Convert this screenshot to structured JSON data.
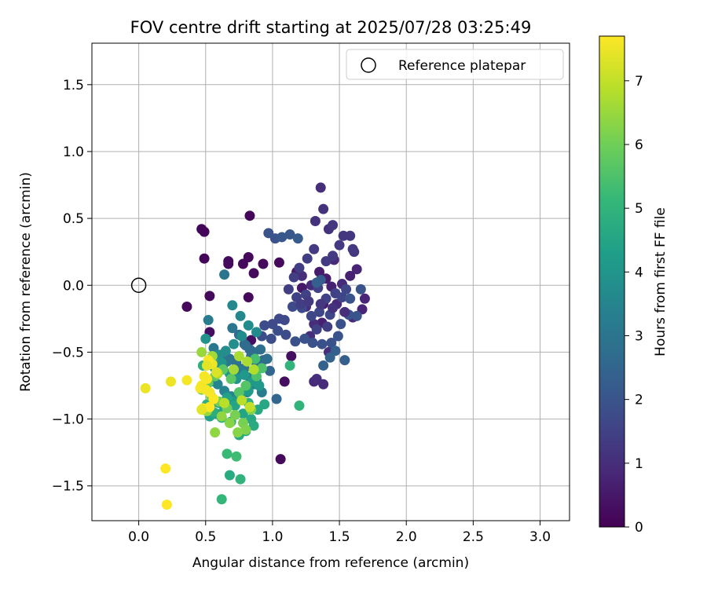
{
  "chart_data": {
    "type": "scatter",
    "title": "FOV centre drift starting at 2025/07/28 03:25:49",
    "xlabel": "Angular distance from reference (arcmin)",
    "ylabel": "Rotation from reference (arcmin)",
    "xlim": [
      -0.35,
      3.22
    ],
    "ylim": [
      -1.76,
      1.81
    ],
    "xticks": [
      0.0,
      0.5,
      1.0,
      1.5,
      2.0,
      2.5,
      3.0
    ],
    "xtick_labels": [
      "0.0",
      "0.5",
      "1.0",
      "1.5",
      "2.0",
      "2.5",
      "3.0"
    ],
    "yticks": [
      -1.5,
      -1.0,
      -0.5,
      0.0,
      0.5,
      1.0,
      1.5
    ],
    "ytick_labels": [
      "−1.5",
      "−1.0",
      "−0.5",
      "0.0",
      "0.5",
      "1.0",
      "1.5"
    ],
    "grid": true,
    "legend": {
      "placement": "top-right",
      "entries": [
        "Reference platepar"
      ]
    },
    "reference_point": {
      "x": 0.0,
      "y": 0.0
    },
    "colorbar": {
      "label": "Hours from first FF file",
      "colormap": "viridis",
      "range": [
        0,
        7.7
      ],
      "ticks": [
        0,
        1,
        2,
        3,
        4,
        5,
        6,
        7
      ],
      "tick_labels": [
        "0",
        "1",
        "2",
        "3",
        "4",
        "5",
        "6",
        "7"
      ]
    },
    "colormap_stops": [
      "#440154",
      "#482878",
      "#3e4a89",
      "#31688e",
      "#26828e",
      "#1f9e89",
      "#35b779",
      "#6ece58",
      "#b5de2b",
      "#fde725"
    ],
    "series": [
      {
        "x": [
          0.47,
          0.49,
          0.83,
          0.67,
          0.67,
          0.78,
          0.82,
          0.86,
          0.49,
          0.93,
          1.05,
          0.53,
          0.36,
          0.82,
          0.84,
          0.53,
          1.06,
          1.09,
          1.14,
          1.18,
          1.22,
          1.35,
          1.38,
          1.4,
          1.37,
          1.44,
          1.58,
          1.63,
          1.69,
          1.67,
          1.6,
          1.48,
          1.52,
          1.46,
          1.29,
          1.31,
          1.33,
          1.38,
          1.42,
          1.28,
          1.25,
          1.22,
          1.31
        ],
        "y": [
          0.42,
          0.4,
          0.52,
          0.18,
          0.16,
          0.16,
          0.21,
          0.09,
          0.2,
          0.16,
          0.17,
          -0.08,
          -0.16,
          -0.09,
          -0.41,
          -0.35,
          -1.3,
          -0.72,
          -0.53,
          0.1,
          -0.02,
          0.1,
          -0.14,
          0.05,
          -0.28,
          -0.01,
          0.07,
          0.12,
          -0.1,
          -0.18,
          -0.24,
          -0.14,
          0.01,
          0.19,
          0.0,
          -0.72,
          -0.7,
          -0.74,
          -0.5,
          -0.38,
          -0.16,
          0.07,
          -0.29
        ],
        "hours": [
          0.1,
          0.1,
          0.1,
          0.2,
          0.2,
          0.2,
          0.2,
          0.2,
          0.1,
          0.2,
          0.2,
          0.2,
          0.2,
          0.2,
          0.3,
          0.3,
          0.2,
          0.3,
          0.3,
          0.5,
          0.5,
          0.6,
          0.6,
          0.6,
          0.7,
          0.7,
          0.7,
          0.8,
          0.8,
          0.8,
          0.9,
          0.9,
          0.9,
          0.9,
          0.9,
          0.9,
          1.0,
          0.9,
          1.0,
          1.0,
          1.0,
          1.0,
          1.0
        ]
      },
      {
        "x": [
          1.36,
          1.38,
          1.32,
          1.42,
          1.45,
          1.53,
          1.58,
          1.61,
          1.6,
          1.5,
          1.45,
          1.4,
          1.31,
          1.26,
          1.2,
          1.16,
          1.12,
          1.18,
          1.25,
          1.34,
          1.4,
          1.47,
          1.52,
          1.55,
          1.43,
          1.35,
          1.29,
          1.22,
          1.15,
          1.09,
          1.05,
          1.0,
          0.94,
          0.92,
          0.99,
          1.04,
          1.1,
          1.17,
          1.24,
          1.3,
          1.37,
          1.44,
          1.51,
          1.57,
          1.63,
          1.66,
          1.58,
          1.49,
          1.41,
          1.33,
          1.21,
          1.27,
          1.36,
          1.45,
          1.54
        ],
        "y": [
          0.73,
          0.57,
          0.48,
          0.42,
          0.45,
          0.37,
          0.37,
          0.25,
          0.27,
          0.3,
          0.22,
          0.18,
          0.27,
          0.2,
          0.13,
          0.06,
          -0.03,
          -0.09,
          -0.07,
          -0.02,
          -0.1,
          -0.06,
          -0.09,
          -0.03,
          -0.22,
          -0.2,
          -0.23,
          -0.17,
          -0.16,
          -0.26,
          -0.25,
          -0.29,
          -0.3,
          -0.38,
          -0.4,
          -0.34,
          -0.37,
          -0.42,
          -0.4,
          -0.43,
          -0.44,
          -0.43,
          -0.29,
          -0.22,
          -0.23,
          -0.03,
          -0.1,
          -0.38,
          -0.31,
          -0.33,
          -0.14,
          -0.12,
          -0.14,
          -0.17,
          -0.2
        ],
        "hours": [
          1.0,
          1.1,
          1.1,
          1.1,
          1.2,
          1.2,
          1.2,
          1.2,
          1.3,
          1.3,
          1.3,
          1.3,
          1.3,
          1.4,
          1.4,
          1.4,
          1.4,
          1.5,
          1.5,
          1.5,
          1.5,
          1.5,
          1.6,
          1.6,
          1.6,
          1.6,
          1.6,
          1.7,
          1.7,
          1.7,
          1.7,
          1.7,
          1.8,
          1.8,
          1.8,
          1.8,
          1.8,
          1.9,
          1.9,
          1.9,
          1.9,
          1.9,
          1.9,
          2.0,
          2.0,
          2.0,
          2.0,
          2.0,
          1.4,
          1.5,
          1.4,
          1.3,
          1.2,
          1.1,
          1.0
        ]
      },
      {
        "x": [
          0.97,
          1.02,
          1.07,
          1.13,
          1.19,
          1.36,
          1.33,
          1.47,
          1.54,
          1.43,
          1.38,
          1.03,
          0.98,
          0.93,
          0.88,
          0.83,
          0.79,
          0.75,
          0.8,
          0.86,
          0.91,
          0.96,
          0.89,
          0.84,
          0.79,
          0.73,
          0.68,
          0.63,
          0.58,
          0.54,
          0.56,
          0.61,
          0.66,
          0.71,
          0.77,
          0.83,
          0.88,
          0.92,
          0.86,
          0.81,
          0.75,
          0.69,
          0.64,
          0.59,
          0.55,
          0.64,
          0.52,
          0.7
        ],
        "y": [
          0.39,
          0.35,
          0.36,
          0.38,
          0.35,
          0.04,
          0.02,
          -0.49,
          -0.56,
          -0.54,
          -0.6,
          -0.85,
          -0.64,
          -0.56,
          -0.6,
          -0.48,
          -0.44,
          -0.37,
          -0.45,
          -0.5,
          -0.48,
          -0.55,
          -0.57,
          -0.53,
          -0.62,
          -0.58,
          -0.55,
          -0.6,
          -0.66,
          -0.72,
          -0.47,
          -0.52,
          -0.57,
          -0.66,
          -0.64,
          -0.69,
          -0.71,
          -0.8,
          -0.74,
          -0.8,
          -0.85,
          -0.83,
          -0.79,
          -0.74,
          -0.88,
          0.08,
          -0.26,
          -0.32
        ],
        "hours": [
          2.0,
          2.0,
          2.1,
          2.1,
          2.2,
          2.2,
          2.3,
          2.3,
          2.3,
          2.4,
          2.4,
          2.5,
          2.5,
          2.5,
          2.6,
          2.6,
          2.6,
          2.7,
          2.7,
          2.7,
          2.8,
          2.8,
          2.8,
          2.8,
          2.9,
          2.9,
          2.9,
          3.0,
          3.0,
          3.0,
          3.1,
          3.1,
          3.1,
          3.2,
          3.2,
          3.3,
          3.3,
          3.3,
          3.4,
          3.4,
          3.4,
          3.5,
          3.5,
          3.5,
          3.6,
          3.0,
          3.2,
          3.0
        ]
      },
      {
        "x": [
          0.7,
          0.76,
          0.82,
          0.88,
          0.77,
          0.71,
          0.65,
          0.6,
          0.55,
          0.5,
          0.57,
          0.62,
          0.68,
          0.73,
          0.79,
          0.85,
          0.9,
          0.82,
          0.76,
          0.7,
          0.64,
          0.58,
          0.53,
          0.48,
          0.6,
          0.66,
          0.72,
          0.78,
          0.84,
          0.89,
          0.94,
          0.86,
          0.8,
          0.75,
          0.69,
          0.62,
          0.56,
          0.51,
          0.82,
          0.68,
          0.76,
          1.13,
          1.2,
          0.48
        ],
        "y": [
          -0.15,
          -0.23,
          -0.3,
          -0.35,
          -0.38,
          -0.44,
          -0.49,
          -0.52,
          -0.55,
          -0.4,
          -0.62,
          -0.58,
          -0.66,
          -0.7,
          -0.67,
          -0.72,
          -0.75,
          -0.79,
          -0.82,
          -0.87,
          -0.92,
          -0.96,
          -0.98,
          -0.93,
          -0.88,
          -0.84,
          -0.9,
          -0.96,
          -1.0,
          -0.93,
          -0.89,
          -1.05,
          -1.09,
          -1.12,
          -1.02,
          -0.99,
          -0.95,
          -0.89,
          -0.88,
          -1.42,
          -1.45,
          -0.6,
          -0.9,
          -0.6
        ],
        "hours": [
          3.6,
          3.6,
          3.7,
          3.7,
          3.7,
          3.8,
          3.8,
          3.8,
          3.9,
          3.9,
          3.9,
          4.0,
          4.0,
          4.0,
          4.1,
          4.1,
          4.1,
          4.2,
          4.2,
          4.2,
          4.3,
          4.3,
          4.3,
          4.4,
          4.4,
          4.4,
          4.5,
          4.5,
          4.6,
          4.6,
          4.6,
          4.7,
          4.7,
          4.7,
          4.8,
          4.8,
          4.8,
          4.9,
          4.9,
          4.7,
          5.0,
          5.0,
          5.0,
          4.9
        ]
      },
      {
        "x": [
          0.62,
          0.66,
          0.73,
          0.87,
          0.92,
          0.88,
          0.8,
          0.75,
          0.69,
          0.63,
          0.57,
          0.52,
          0.47,
          0.54,
          0.6,
          0.66,
          0.72,
          0.78,
          0.84,
          0.8,
          0.74,
          0.68,
          0.62,
          0.57,
          0.51,
          0.47,
          0.55,
          0.71,
          0.75,
          0.81,
          0.86,
          0.59,
          0.64,
          0.77,
          0.83
        ],
        "y": [
          -1.6,
          -1.26,
          -1.28,
          -0.55,
          -0.62,
          -0.68,
          -0.75,
          -0.8,
          -0.7,
          -0.63,
          -0.68,
          -0.73,
          -0.78,
          -0.83,
          -0.87,
          -0.92,
          -0.97,
          -1.03,
          -0.93,
          -1.08,
          -1.1,
          -1.03,
          -0.98,
          -1.1,
          -0.94,
          -0.5,
          -0.53,
          -0.63,
          -0.53,
          -0.57,
          -0.63,
          -0.66,
          -0.88,
          -0.86,
          -0.91
        ],
        "hours": [
          5.1,
          5.2,
          5.3,
          5.4,
          5.5,
          5.5,
          5.6,
          5.6,
          5.7,
          5.7,
          5.8,
          5.8,
          5.9,
          5.9,
          6.0,
          6.0,
          6.1,
          6.1,
          6.2,
          6.2,
          6.3,
          6.3,
          6.4,
          6.4,
          6.5,
          6.5,
          6.6,
          6.6,
          6.7,
          6.7,
          6.8,
          6.8,
          6.9,
          6.9,
          7.0
        ]
      },
      {
        "x": [
          0.05,
          0.24,
          0.36,
          0.47,
          0.5,
          0.53,
          0.56,
          0.48,
          0.51,
          0.55,
          0.52,
          0.49,
          0.46,
          0.2,
          0.21,
          0.53,
          0.51,
          0.58,
          0.47
        ],
        "y": [
          -0.77,
          -0.72,
          -0.71,
          -0.75,
          -0.78,
          -0.8,
          -0.85,
          -0.92,
          -0.7,
          -0.59,
          -0.56,
          -0.68,
          -0.77,
          -1.37,
          -1.64,
          -0.91,
          -0.6,
          -0.65,
          -0.93
        ],
        "hours": [
          7.5,
          7.5,
          7.6,
          7.6,
          7.6,
          7.6,
          7.7,
          7.7,
          7.7,
          7.5,
          7.6,
          7.6,
          7.6,
          7.7,
          7.7,
          7.7,
          7.4,
          7.3,
          7.4
        ]
      }
    ]
  }
}
